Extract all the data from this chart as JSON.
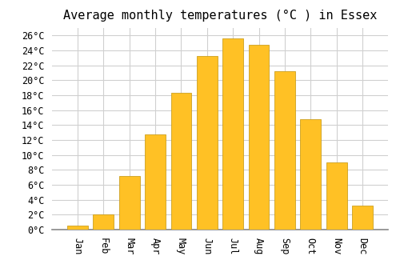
{
  "title": "Average monthly temperatures (°C ) in Essex",
  "months": [
    "Jan",
    "Feb",
    "Mar",
    "Apr",
    "May",
    "Jun",
    "Jul",
    "Aug",
    "Sep",
    "Oct",
    "Nov",
    "Dec"
  ],
  "temperatures": [
    0.5,
    2.0,
    7.2,
    12.7,
    18.3,
    23.2,
    25.6,
    24.8,
    21.2,
    14.8,
    9.0,
    3.2
  ],
  "bar_color": "#FFC125",
  "bar_edge_color": "#CCA020",
  "background_color": "#FFFFFF",
  "grid_color": "#D0D0D0",
  "ylim": [
    0,
    27
  ],
  "yticks": [
    0,
    2,
    4,
    6,
    8,
    10,
    12,
    14,
    16,
    18,
    20,
    22,
    24,
    26
  ],
  "title_fontsize": 11,
  "tick_fontsize": 8.5,
  "bar_width": 0.8
}
